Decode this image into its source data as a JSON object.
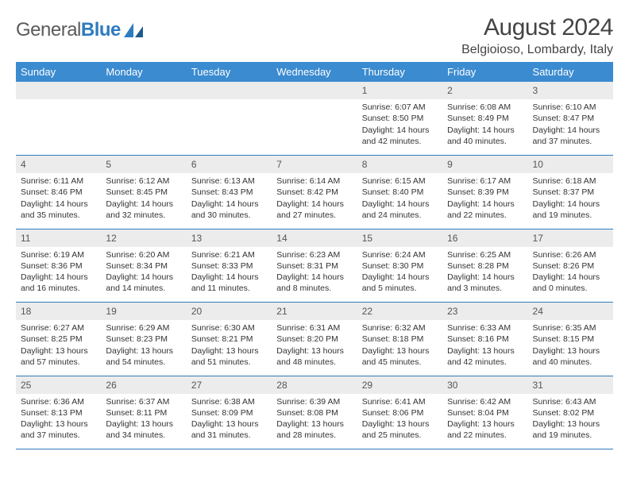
{
  "brand": {
    "part1": "General",
    "part2": "Blue"
  },
  "title": "August 2024",
  "location": "Belgioioso, Lombardy, Italy",
  "colors": {
    "header_bg": "#3b8bd0",
    "divider": "#2f7bbf",
    "daynum_bg": "#ececec",
    "logo_blue": "#2f7bbf",
    "logo_gray": "#5a5a5a"
  },
  "weekdays": [
    "Sunday",
    "Monday",
    "Tuesday",
    "Wednesday",
    "Thursday",
    "Friday",
    "Saturday"
  ],
  "weeks": [
    [
      null,
      null,
      null,
      null,
      {
        "n": "1",
        "sunrise": "Sunrise: 6:07 AM",
        "sunset": "Sunset: 8:50 PM",
        "day1": "Daylight: 14 hours",
        "day2": "and 42 minutes."
      },
      {
        "n": "2",
        "sunrise": "Sunrise: 6:08 AM",
        "sunset": "Sunset: 8:49 PM",
        "day1": "Daylight: 14 hours",
        "day2": "and 40 minutes."
      },
      {
        "n": "3",
        "sunrise": "Sunrise: 6:10 AM",
        "sunset": "Sunset: 8:47 PM",
        "day1": "Daylight: 14 hours",
        "day2": "and 37 minutes."
      }
    ],
    [
      {
        "n": "4",
        "sunrise": "Sunrise: 6:11 AM",
        "sunset": "Sunset: 8:46 PM",
        "day1": "Daylight: 14 hours",
        "day2": "and 35 minutes."
      },
      {
        "n": "5",
        "sunrise": "Sunrise: 6:12 AM",
        "sunset": "Sunset: 8:45 PM",
        "day1": "Daylight: 14 hours",
        "day2": "and 32 minutes."
      },
      {
        "n": "6",
        "sunrise": "Sunrise: 6:13 AM",
        "sunset": "Sunset: 8:43 PM",
        "day1": "Daylight: 14 hours",
        "day2": "and 30 minutes."
      },
      {
        "n": "7",
        "sunrise": "Sunrise: 6:14 AM",
        "sunset": "Sunset: 8:42 PM",
        "day1": "Daylight: 14 hours",
        "day2": "and 27 minutes."
      },
      {
        "n": "8",
        "sunrise": "Sunrise: 6:15 AM",
        "sunset": "Sunset: 8:40 PM",
        "day1": "Daylight: 14 hours",
        "day2": "and 24 minutes."
      },
      {
        "n": "9",
        "sunrise": "Sunrise: 6:17 AM",
        "sunset": "Sunset: 8:39 PM",
        "day1": "Daylight: 14 hours",
        "day2": "and 22 minutes."
      },
      {
        "n": "10",
        "sunrise": "Sunrise: 6:18 AM",
        "sunset": "Sunset: 8:37 PM",
        "day1": "Daylight: 14 hours",
        "day2": "and 19 minutes."
      }
    ],
    [
      {
        "n": "11",
        "sunrise": "Sunrise: 6:19 AM",
        "sunset": "Sunset: 8:36 PM",
        "day1": "Daylight: 14 hours",
        "day2": "and 16 minutes."
      },
      {
        "n": "12",
        "sunrise": "Sunrise: 6:20 AM",
        "sunset": "Sunset: 8:34 PM",
        "day1": "Daylight: 14 hours",
        "day2": "and 14 minutes."
      },
      {
        "n": "13",
        "sunrise": "Sunrise: 6:21 AM",
        "sunset": "Sunset: 8:33 PM",
        "day1": "Daylight: 14 hours",
        "day2": "and 11 minutes."
      },
      {
        "n": "14",
        "sunrise": "Sunrise: 6:23 AM",
        "sunset": "Sunset: 8:31 PM",
        "day1": "Daylight: 14 hours",
        "day2": "and 8 minutes."
      },
      {
        "n": "15",
        "sunrise": "Sunrise: 6:24 AM",
        "sunset": "Sunset: 8:30 PM",
        "day1": "Daylight: 14 hours",
        "day2": "and 5 minutes."
      },
      {
        "n": "16",
        "sunrise": "Sunrise: 6:25 AM",
        "sunset": "Sunset: 8:28 PM",
        "day1": "Daylight: 14 hours",
        "day2": "and 3 minutes."
      },
      {
        "n": "17",
        "sunrise": "Sunrise: 6:26 AM",
        "sunset": "Sunset: 8:26 PM",
        "day1": "Daylight: 14 hours",
        "day2": "and 0 minutes."
      }
    ],
    [
      {
        "n": "18",
        "sunrise": "Sunrise: 6:27 AM",
        "sunset": "Sunset: 8:25 PM",
        "day1": "Daylight: 13 hours",
        "day2": "and 57 minutes."
      },
      {
        "n": "19",
        "sunrise": "Sunrise: 6:29 AM",
        "sunset": "Sunset: 8:23 PM",
        "day1": "Daylight: 13 hours",
        "day2": "and 54 minutes."
      },
      {
        "n": "20",
        "sunrise": "Sunrise: 6:30 AM",
        "sunset": "Sunset: 8:21 PM",
        "day1": "Daylight: 13 hours",
        "day2": "and 51 minutes."
      },
      {
        "n": "21",
        "sunrise": "Sunrise: 6:31 AM",
        "sunset": "Sunset: 8:20 PM",
        "day1": "Daylight: 13 hours",
        "day2": "and 48 minutes."
      },
      {
        "n": "22",
        "sunrise": "Sunrise: 6:32 AM",
        "sunset": "Sunset: 8:18 PM",
        "day1": "Daylight: 13 hours",
        "day2": "and 45 minutes."
      },
      {
        "n": "23",
        "sunrise": "Sunrise: 6:33 AM",
        "sunset": "Sunset: 8:16 PM",
        "day1": "Daylight: 13 hours",
        "day2": "and 42 minutes."
      },
      {
        "n": "24",
        "sunrise": "Sunrise: 6:35 AM",
        "sunset": "Sunset: 8:15 PM",
        "day1": "Daylight: 13 hours",
        "day2": "and 40 minutes."
      }
    ],
    [
      {
        "n": "25",
        "sunrise": "Sunrise: 6:36 AM",
        "sunset": "Sunset: 8:13 PM",
        "day1": "Daylight: 13 hours",
        "day2": "and 37 minutes."
      },
      {
        "n": "26",
        "sunrise": "Sunrise: 6:37 AM",
        "sunset": "Sunset: 8:11 PM",
        "day1": "Daylight: 13 hours",
        "day2": "and 34 minutes."
      },
      {
        "n": "27",
        "sunrise": "Sunrise: 6:38 AM",
        "sunset": "Sunset: 8:09 PM",
        "day1": "Daylight: 13 hours",
        "day2": "and 31 minutes."
      },
      {
        "n": "28",
        "sunrise": "Sunrise: 6:39 AM",
        "sunset": "Sunset: 8:08 PM",
        "day1": "Daylight: 13 hours",
        "day2": "and 28 minutes."
      },
      {
        "n": "29",
        "sunrise": "Sunrise: 6:41 AM",
        "sunset": "Sunset: 8:06 PM",
        "day1": "Daylight: 13 hours",
        "day2": "and 25 minutes."
      },
      {
        "n": "30",
        "sunrise": "Sunrise: 6:42 AM",
        "sunset": "Sunset: 8:04 PM",
        "day1": "Daylight: 13 hours",
        "day2": "and 22 minutes."
      },
      {
        "n": "31",
        "sunrise": "Sunrise: 6:43 AM",
        "sunset": "Sunset: 8:02 PM",
        "day1": "Daylight: 13 hours",
        "day2": "and 19 minutes."
      }
    ]
  ]
}
